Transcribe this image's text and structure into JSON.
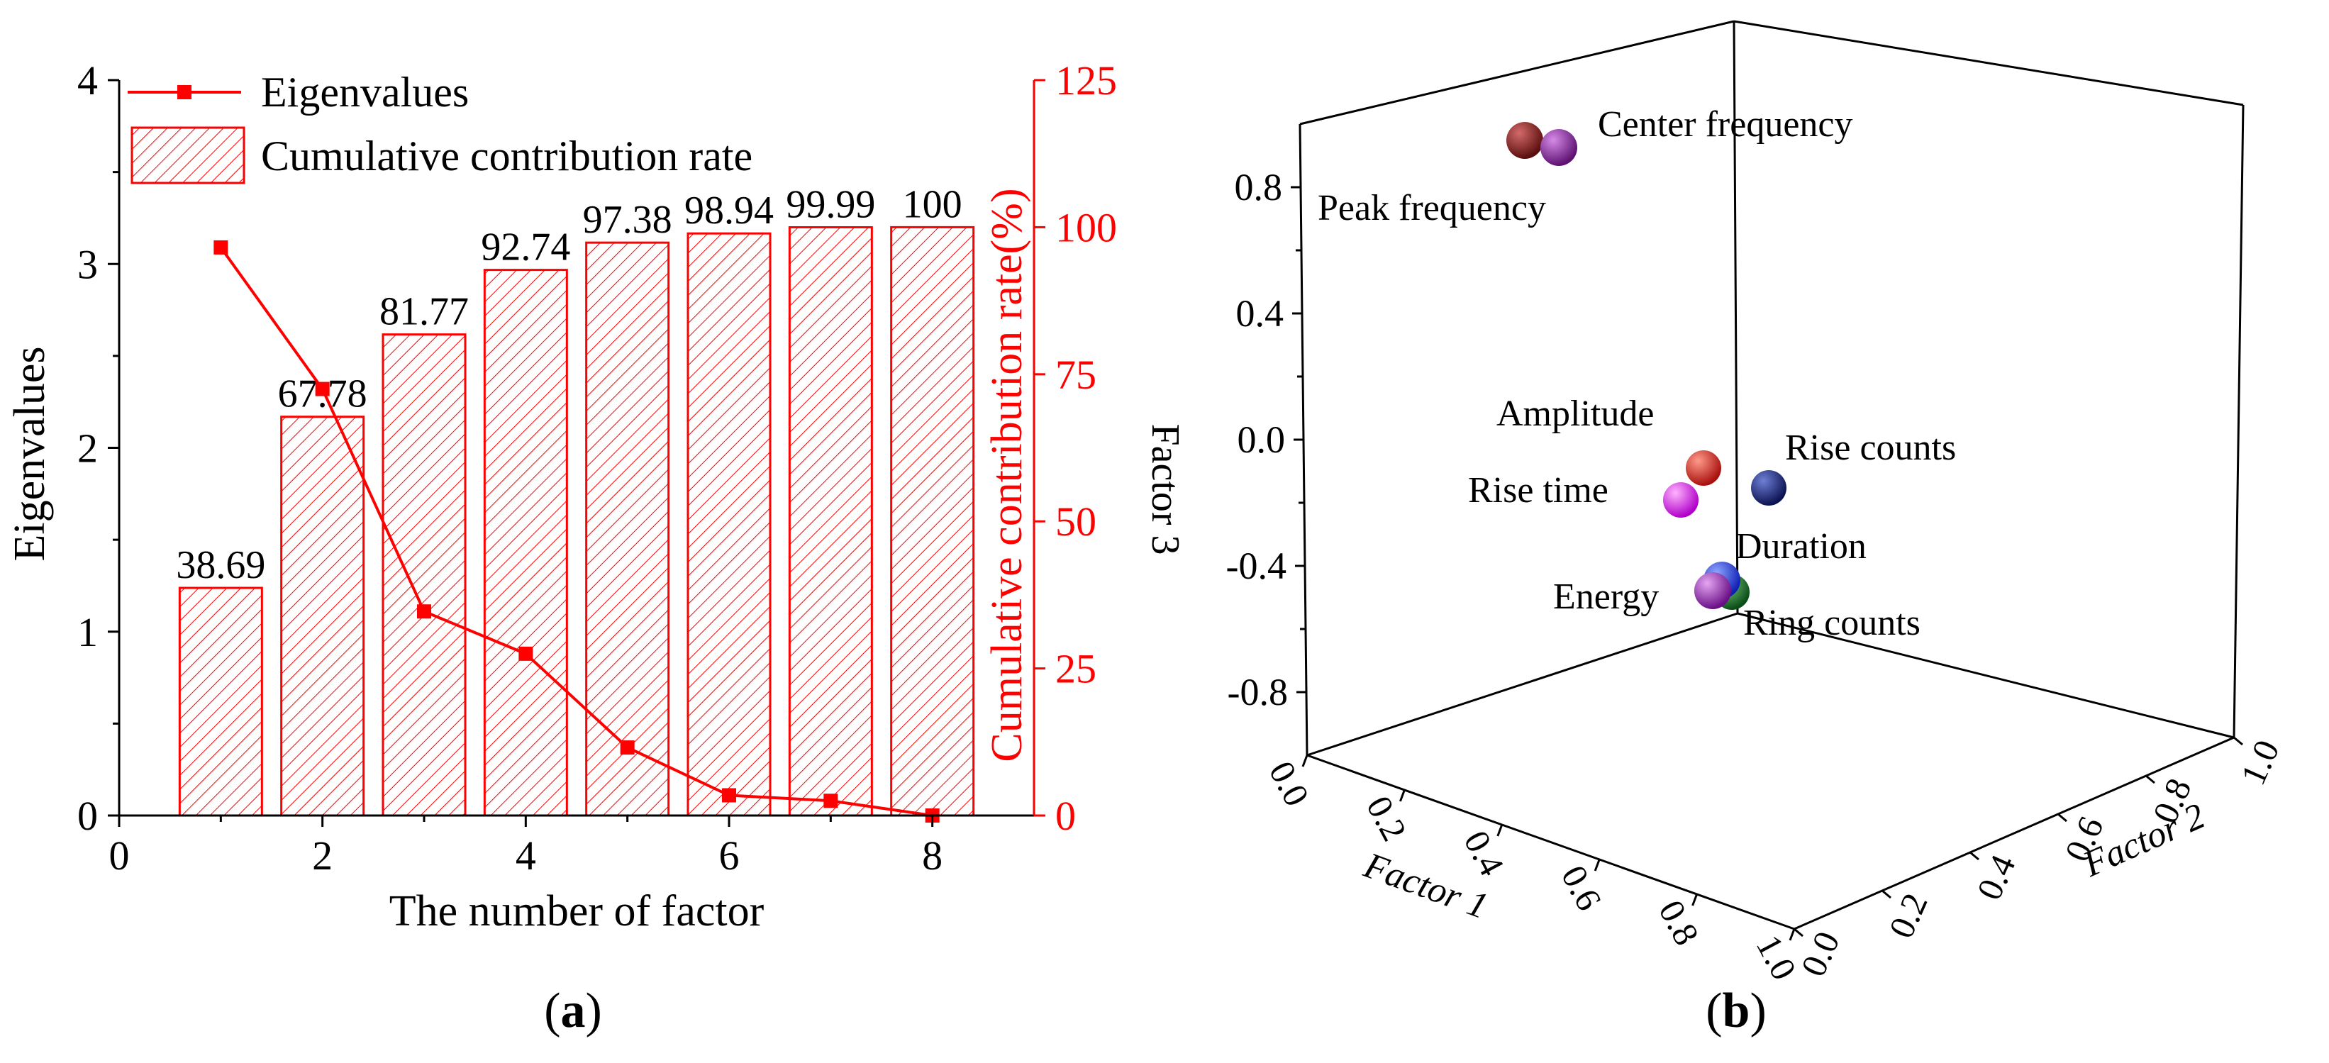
{
  "colors": {
    "eigen": "#ff0000",
    "axis": "#000000",
    "bar_hatch": "#ff0000"
  },
  "chart_data": [
    {
      "type": "bar",
      "panel_label": "(a)",
      "xlabel": "The number of factor",
      "ylabel": "Eigenvalues",
      "y2label": "Cumulative contribution rate(%)",
      "xlim": [
        0,
        9
      ],
      "xticks": [
        "0",
        "2",
        "4",
        "6",
        "8"
      ],
      "ylim": [
        0,
        4
      ],
      "yticks": [
        "0",
        "1",
        "2",
        "3",
        "4"
      ],
      "y2lim": [
        0,
        125
      ],
      "y2ticks": [
        "0",
        "25",
        "50",
        "75",
        "100",
        "125"
      ],
      "legend": {
        "position": "top-left",
        "entries": [
          "Eigenvalues",
          "Cumulative contribution rate"
        ]
      },
      "bars": {
        "name": "Cumulative contribution rate",
        "x": [
          1,
          2,
          3,
          4,
          5,
          6,
          7,
          8
        ],
        "values": [
          38.69,
          67.78,
          81.77,
          92.74,
          97.38,
          98.94,
          99.99,
          100
        ],
        "labels": [
          "38.69",
          "67.78",
          "81.77",
          "92.74",
          "97.38",
          "98.94",
          "99.99",
          "100"
        ],
        "axis": "right"
      },
      "line": {
        "name": "Eigenvalues",
        "x": [
          1,
          2,
          3,
          4,
          5,
          6,
          7,
          8
        ],
        "values": [
          3.09,
          2.32,
          1.11,
          0.88,
          0.37,
          0.11,
          0.08,
          0.0
        ],
        "axis": "left"
      }
    },
    {
      "type": "scatter",
      "panel_label": "(b)",
      "xlabel": "Factor 1",
      "ylabel": "Factor 2",
      "zlabel": "Factor 3",
      "xlim": [
        0,
        1
      ],
      "ylim": [
        0,
        1
      ],
      "zlim": [
        -1,
        1
      ],
      "xticks": [
        "0.0",
        "0.2",
        "0.4",
        "0.6",
        "0.8",
        "1.0"
      ],
      "yticks": [
        "0.0",
        "0.2",
        "0.4",
        "0.6",
        "0.8",
        "1.0"
      ],
      "zticks": [
        "-0.8",
        "-0.4",
        "0.0",
        "0.4",
        "0.8"
      ],
      "points": [
        {
          "label": "Peak frequency",
          "color": "#8b1a1a"
        },
        {
          "label": "Center frequency",
          "color": "#8e24aa"
        },
        {
          "label": "Amplitude",
          "color": "#e53935"
        },
        {
          "label": "Rise time",
          "color": "#e040fb"
        },
        {
          "label": "Rise counts",
          "color": "#1a237e"
        },
        {
          "label": "Duration",
          "color": "#1e40ff"
        },
        {
          "label": "Energy",
          "color": "#9c27b0"
        },
        {
          "label": "Ring counts",
          "color": "#1b7a2a"
        }
      ]
    }
  ]
}
